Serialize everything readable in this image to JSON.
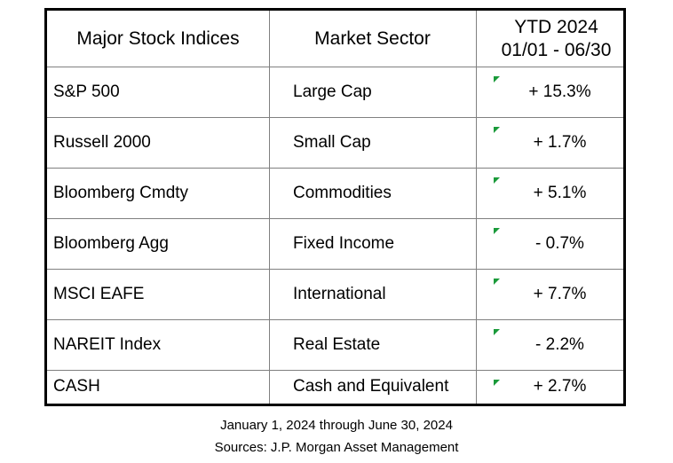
{
  "table": {
    "columns": [
      "Major Stock Indices",
      "Market Sector",
      "YTD 2024"
    ],
    "column_subtitle": "01/01 - 06/30",
    "rows": [
      [
        "S&P 500",
        "Large Cap",
        "+ 15.3%"
      ],
      [
        "Russell 2000",
        "Small Cap",
        "+ 1.7%"
      ],
      [
        "Bloomberg Cmdty",
        "Commodities",
        "+ 5.1%"
      ],
      [
        "Bloomberg Agg",
        "Fixed Income",
        "- 0.7%"
      ],
      [
        "MSCI EAFE",
        "International",
        "+ 7.7%"
      ],
      [
        "NAREIT Index",
        "Real Estate",
        "- 2.2%"
      ],
      [
        "CASH",
        "Cash and Equivalent",
        "+ 2.7%"
      ]
    ]
  },
  "footer": [
    "January 1, 2024 through June 30, 2024",
    "Sources: J.P. Morgan Asset Management"
  ]
}
